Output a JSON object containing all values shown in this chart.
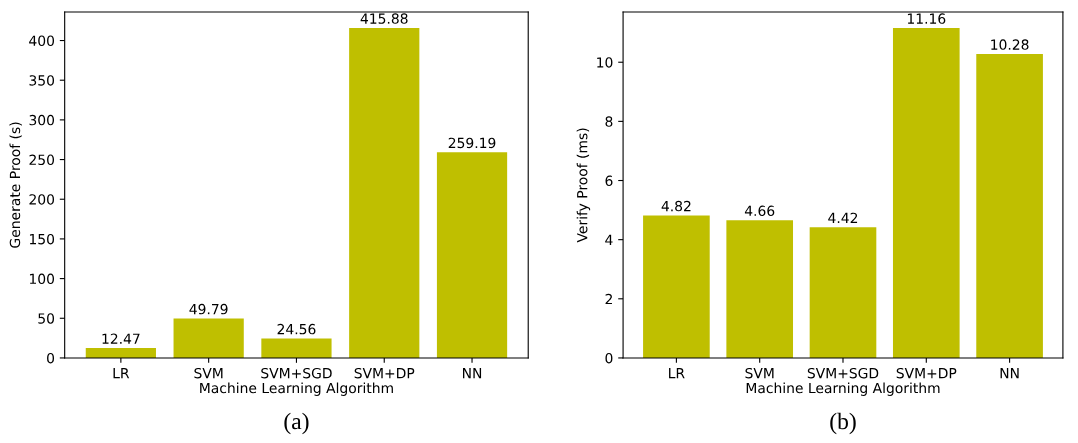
{
  "chart_data": [
    {
      "type": "bar",
      "categories": [
        "LR",
        "SVM",
        "SVM+SGD",
        "SVM+DP",
        "NN"
      ],
      "values": [
        12.47,
        49.79,
        24.56,
        415.88,
        259.19
      ],
      "color": "#bfbf00",
      "xlabel": "Machine Learning Algorithm",
      "ylabel": "Generate Proof (s)",
      "ylim": [
        0,
        436
      ],
      "yticks": [
        0,
        50,
        100,
        150,
        200,
        250,
        300,
        350,
        400
      ],
      "data_labels": true,
      "grid": false,
      "annotations": [
        "(a)"
      ]
    },
    {
      "type": "bar",
      "categories": [
        "LR",
        "SVM",
        "SVM+SGD",
        "SVM+DP",
        "NN"
      ],
      "values": [
        4.82,
        4.66,
        4.42,
        11.16,
        10.28
      ],
      "color": "#bfbf00",
      "xlabel": "Machine Learning Algorithm",
      "ylabel": "Verify Proof (ms)",
      "ylim": [
        0,
        11.7
      ],
      "yticks": [
        0,
        2,
        4,
        6,
        8,
        10
      ],
      "data_labels": true,
      "grid": false,
      "annotations": [
        "(b)"
      ]
    }
  ]
}
